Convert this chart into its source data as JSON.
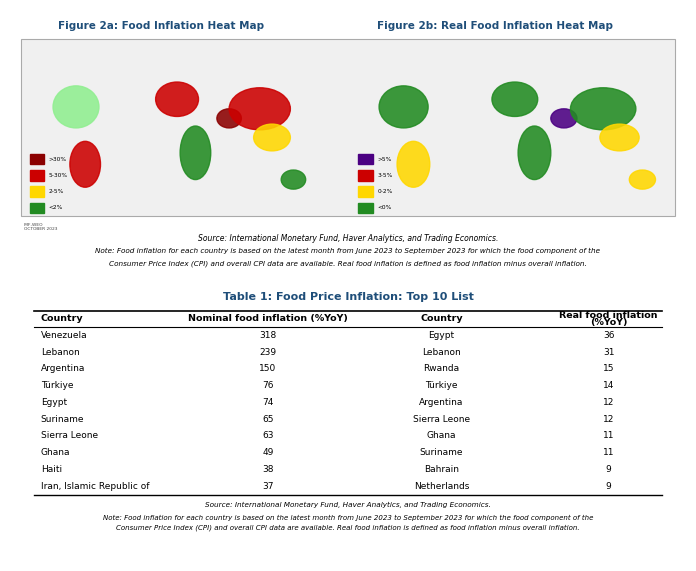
{
  "title_table": "Table 1: Food Price Inflation: Top 10 List",
  "fig2a_title": "Figure 2a: Food Inflation Heat Map",
  "fig2b_title": "Figure 2b: Real Food Inflation Heat Map",
  "source_text": "Source: International Monetary Fund, Haver Analytics, and Trading Economics.",
  "note_text1": "Note: Food inflation for each country is based on the latest month from June 2023 to September 2023 for which the food component of the",
  "note_text2": "Consumer Price Index (CPI) and overall CPI data are available. Real food inflation is defined as food inflation minus overall inflation.",
  "col_headers": [
    "Country",
    "Nominal food inflation (%YoY)",
    "Country",
    "Real food inflation\n(%YoY)"
  ],
  "nominal_countries": [
    "Venezuela",
    "Lebanon",
    "Argentina",
    "Türkiye",
    "Egypt",
    "Suriname",
    "Sierra Leone",
    "Ghana",
    "Haiti",
    "Iran, Islamic Republic of"
  ],
  "nominal_values": [
    318,
    239,
    150,
    76,
    74,
    65,
    63,
    49,
    38,
    37
  ],
  "real_countries": [
    "Egypt",
    "Lebanon",
    "Rwanda",
    "Türkiye",
    "Argentina",
    "Sierra Leone",
    "Ghana",
    "Suriname",
    "Bahrain",
    "Netherlands"
  ],
  "real_values": [
    36,
    31,
    15,
    14,
    12,
    12,
    11,
    11,
    9,
    9
  ],
  "title_color": "#1F4E79",
  "background_color": "#ffffff",
  "fig2a_legend": [
    ">30%",
    "5-30%",
    "2-5%",
    "<2%"
  ],
  "fig2a_legend_colors": [
    "#8B0000",
    "#CC0000",
    "#FFD700",
    "#228B22"
  ],
  "fig2b_legend": [
    ">5%",
    "3-5%",
    "0-2%",
    "<0%"
  ],
  "fig2b_legend_colors": [
    "#4B0082",
    "#CC0000",
    "#FFD700",
    "#228B22"
  ]
}
